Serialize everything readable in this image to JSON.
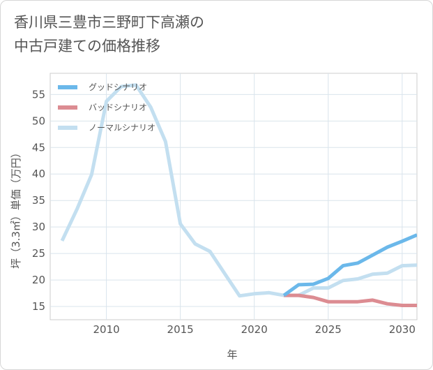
{
  "title": {
    "line1": "香川県三豊市三野町下高瀬の",
    "line2": "中古戸建ての価格推移"
  },
  "colors": {
    "good": "#6bb8ea",
    "bad": "#dc8c92",
    "normal": "#c3dff0",
    "grid": "#d9e4ec",
    "axis_text": "#555555",
    "plot_border": "#cccccc"
  },
  "chart_data": {
    "type": "line",
    "title": "香川県三豊市三野町下高瀬の中古戸建ての価格推移",
    "xlabel": "年",
    "ylabel": "坪（3.3㎡）単価（万円）",
    "xlim": [
      2006.2,
      2031.0
    ],
    "ylim": [
      12.5,
      59.0
    ],
    "xticks": [
      2010,
      2015,
      2020,
      2025,
      2030
    ],
    "xtick_labels": [
      "2010",
      "2015",
      "2020",
      "2025",
      "2030"
    ],
    "yticks": [
      15,
      20,
      25,
      30,
      35,
      40,
      45,
      50,
      55
    ],
    "ytick_labels": [
      "15",
      "20",
      "25",
      "30",
      "35",
      "40",
      "45",
      "50",
      "55"
    ],
    "grid": true,
    "legend_position": "top-left",
    "series": [
      {
        "name": "ノーマルシナリオ",
        "key": "normal",
        "x": [
          2007,
          2008,
          2009,
          2010,
          2011,
          2012,
          2013,
          2014,
          2015,
          2016,
          2017,
          2018,
          2019,
          2020,
          2021,
          2022,
          2023,
          2024,
          2025,
          2026,
          2027,
          2028,
          2029,
          2030,
          2031
        ],
        "values": [
          27.4,
          33.3,
          39.9,
          53.7,
          56.5,
          56.8,
          52.6,
          46.1,
          30.6,
          26.8,
          25.4,
          21.2,
          17.0,
          17.4,
          17.6,
          17.1,
          17.1,
          18.5,
          18.5,
          19.9,
          20.2,
          21.1,
          21.3,
          22.7,
          22.8
        ]
      },
      {
        "name": "バッドシナリオ",
        "key": "bad",
        "x": [
          2022,
          2023,
          2024,
          2025,
          2026,
          2027,
          2028,
          2029,
          2030,
          2031
        ],
        "values": [
          17.1,
          17.1,
          16.7,
          15.9,
          15.9,
          15.9,
          16.2,
          15.5,
          15.2,
          15.2
        ]
      },
      {
        "name": "グッドシナリオ",
        "key": "good",
        "x": [
          2022,
          2023,
          2024,
          2025,
          2026,
          2027,
          2028,
          2029,
          2030,
          2031
        ],
        "values": [
          17.1,
          19.1,
          19.2,
          20.3,
          22.7,
          23.2,
          24.7,
          26.2,
          27.3,
          28.5
        ]
      }
    ],
    "legend": [
      {
        "name": "グッドシナリオ",
        "key": "good"
      },
      {
        "name": "バッドシナリオ",
        "key": "bad"
      },
      {
        "name": "ノーマルシナリオ",
        "key": "normal"
      }
    ]
  }
}
